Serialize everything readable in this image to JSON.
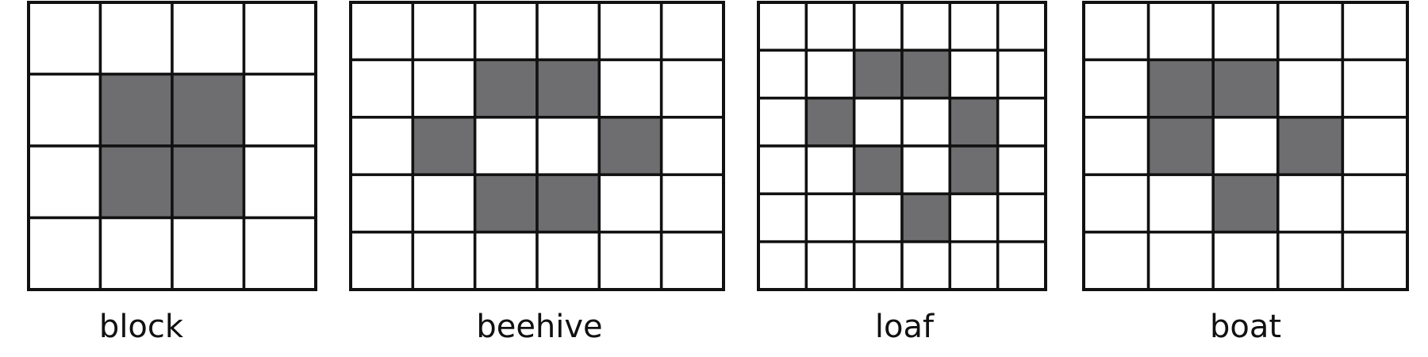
{
  "diagram": {
    "colors": {
      "alive": "#6e6e70",
      "dead": "#ffffff",
      "grid": "#111111"
    },
    "patterns": [
      {
        "name": "block",
        "cols": 4,
        "rows": 4,
        "alive_cells": [
          [
            1,
            1
          ],
          [
            2,
            1
          ],
          [
            1,
            2
          ],
          [
            2,
            2
          ]
        ]
      },
      {
        "name": "beehive",
        "cols": 6,
        "rows": 5,
        "alive_cells": [
          [
            2,
            1
          ],
          [
            3,
            1
          ],
          [
            1,
            2
          ],
          [
            4,
            2
          ],
          [
            2,
            3
          ],
          [
            3,
            3
          ]
        ]
      },
      {
        "name": "loaf",
        "cols": 6,
        "rows": 6,
        "alive_cells": [
          [
            2,
            1
          ],
          [
            3,
            1
          ],
          [
            1,
            2
          ],
          [
            4,
            2
          ],
          [
            2,
            3
          ],
          [
            4,
            3
          ],
          [
            3,
            4
          ]
        ]
      },
      {
        "name": "boat",
        "cols": 5,
        "rows": 5,
        "alive_cells": [
          [
            1,
            1
          ],
          [
            2,
            1
          ],
          [
            1,
            2
          ],
          [
            3,
            2
          ],
          [
            2,
            3
          ]
        ]
      }
    ]
  }
}
